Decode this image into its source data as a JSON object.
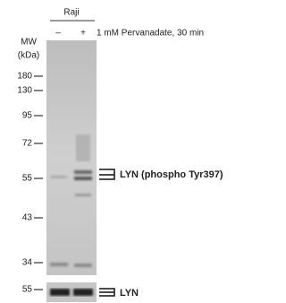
{
  "header": {
    "cell_line": "Raji",
    "lanes": [
      "–",
      "+"
    ],
    "treatment": "1 mM Pervanadate, 30 min"
  },
  "mw_label": [
    "MW",
    "(kDa)"
  ],
  "upper_panel": {
    "markers": [
      "180",
      "130",
      "95",
      "72",
      "55",
      "43",
      "34"
    ],
    "band_label": "LYN (phospho  Tyr397)"
  },
  "lower_panel": {
    "markers": [
      "55"
    ],
    "band_label": "LYN"
  }
}
